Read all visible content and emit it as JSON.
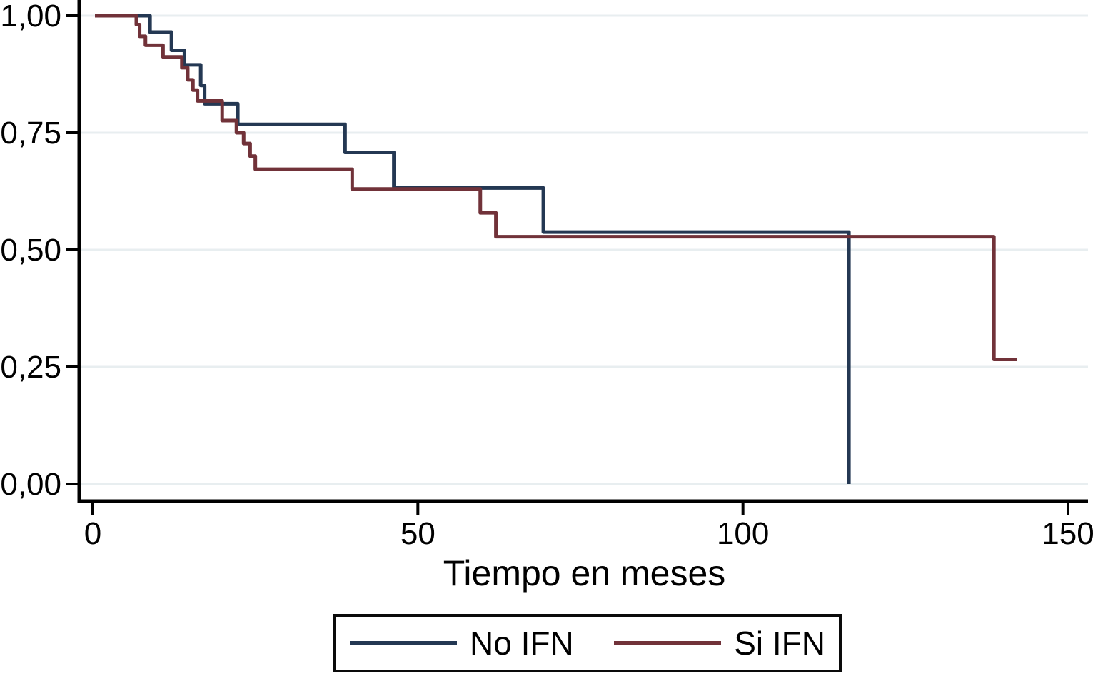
{
  "chart_data": {
    "type": "line",
    "subtype": "kaplan-meier-step-survival",
    "title": "",
    "xlabel": "Tiempo en meses",
    "ylabel": "",
    "xlim": [
      0,
      150
    ],
    "ylim": [
      0.0,
      1.0
    ],
    "x_ticks": [
      0,
      50,
      100,
      150
    ],
    "x_tick_labels": [
      "0",
      "50",
      "100",
      "150"
    ],
    "y_ticks": [
      0.0,
      0.25,
      0.5,
      0.75,
      1.0
    ],
    "y_tick_labels": [
      "0,00",
      "0,25",
      "0,50",
      "0,75",
      "1,00"
    ],
    "grid": "horizontal",
    "grid_color": "#e8eef0",
    "axis_color": "#000000",
    "legend_position": "bottom-center-boxed",
    "series": [
      {
        "name": "No IFN",
        "color": "#243853",
        "steps": [
          [
            0,
            1.0
          ],
          [
            8.8,
            0.965
          ],
          [
            12.1,
            0.926
          ],
          [
            14.1,
            0.895
          ],
          [
            16.6,
            0.851
          ],
          [
            17.2,
            0.812
          ],
          [
            22.3,
            0.768
          ],
          [
            38.8,
            0.708
          ],
          [
            46.3,
            0.632
          ],
          [
            69.3,
            0.538
          ],
          [
            116.3,
            0.0
          ]
        ],
        "end_time": 116.3
      },
      {
        "name": "Si IFN",
        "color": "#713239",
        "steps": [
          [
            0,
            1.0
          ],
          [
            6.7,
            0.981
          ],
          [
            7.2,
            0.956
          ],
          [
            8.1,
            0.937
          ],
          [
            10.8,
            0.912
          ],
          [
            13.7,
            0.889
          ],
          [
            14.6,
            0.863
          ],
          [
            15.4,
            0.841
          ],
          [
            16.1,
            0.818
          ],
          [
            19.9,
            0.776
          ],
          [
            22.1,
            0.75
          ],
          [
            23.2,
            0.727
          ],
          [
            24.2,
            0.7
          ],
          [
            25.0,
            0.672
          ],
          [
            39.9,
            0.63
          ],
          [
            59.6,
            0.579
          ],
          [
            62.0,
            0.528
          ],
          [
            138.6,
            0.266
          ]
        ],
        "end_time": 142.2
      }
    ]
  }
}
